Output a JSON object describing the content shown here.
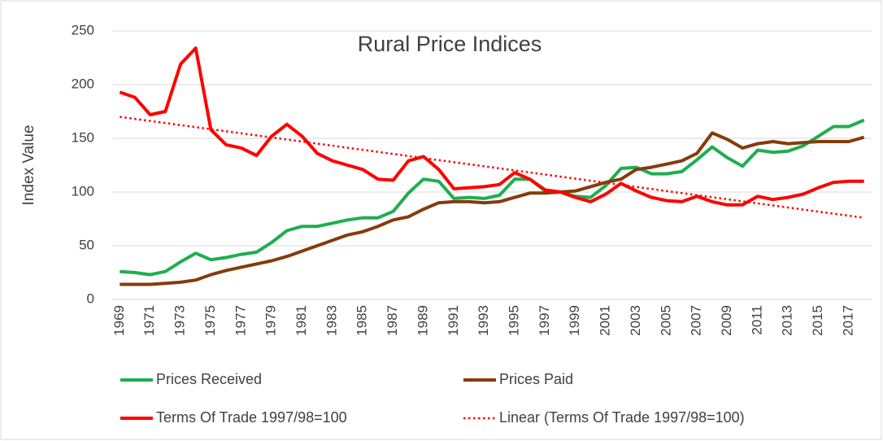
{
  "chart_data": {
    "type": "line",
    "title": "Rural Price Indices",
    "y_label": "Index Value",
    "x": [
      1969,
      1970,
      1971,
      1972,
      1973,
      1974,
      1975,
      1976,
      1977,
      1978,
      1979,
      1980,
      1981,
      1982,
      1983,
      1984,
      1985,
      1986,
      1987,
      1988,
      1989,
      1990,
      1991,
      1992,
      1993,
      1994,
      1995,
      1996,
      1997,
      1998,
      1999,
      2000,
      2001,
      2002,
      2003,
      2004,
      2005,
      2006,
      2007,
      2008,
      2009,
      2010,
      2011,
      2012,
      2013,
      2014,
      2015,
      2016,
      2017,
      2018
    ],
    "xlim": [
      1968.5,
      2018.5
    ],
    "xticks": [
      1969,
      1971,
      1973,
      1975,
      1977,
      1979,
      1981,
      1983,
      1985,
      1987,
      1989,
      1991,
      1993,
      1995,
      1997,
      1999,
      2001,
      2003,
      2005,
      2007,
      2009,
      2011,
      2013,
      2015,
      2017
    ],
    "ylim": [
      0,
      250
    ],
    "yticks": [
      0,
      50,
      100,
      150,
      200,
      250
    ],
    "grid": true,
    "series": [
      {
        "name": "Prices Received",
        "color": "#1fae4f",
        "values": [
          26,
          25,
          23,
          26,
          35,
          43,
          37,
          39,
          42,
          44,
          53,
          64,
          68,
          68,
          71,
          74,
          76,
          76,
          82,
          99,
          112,
          110,
          94,
          95,
          94,
          97,
          112,
          112,
          101,
          100,
          96,
          95,
          106,
          122,
          123,
          117,
          117,
          119,
          130,
          142,
          132,
          124,
          139,
          137,
          138,
          143,
          152,
          161,
          161,
          167
        ]
      },
      {
        "name": "Prices Paid",
        "color": "#843c0c",
        "values": [
          14,
          14,
          14,
          15,
          16,
          18,
          23,
          27,
          30,
          33,
          36,
          40,
          45,
          50,
          55,
          60,
          63,
          68,
          74,
          77,
          84,
          90,
          91,
          91,
          90,
          91,
          95,
          99,
          99,
          100,
          101,
          105,
          109,
          112,
          121,
          123,
          126,
          129,
          136,
          155,
          149,
          141,
          145,
          147,
          145,
          146,
          147,
          147,
          147,
          151
        ]
      },
      {
        "name": "Terms Of Trade 1997/98=100",
        "color": "#ff0000",
        "values": [
          193,
          188,
          172,
          175,
          219,
          234,
          158,
          144,
          141,
          134,
          152,
          163,
          152,
          136,
          129,
          125,
          121,
          112,
          111,
          129,
          133,
          121,
          103,
          104,
          105,
          107,
          118,
          112,
          102,
          100,
          95,
          91,
          98,
          108,
          101,
          95,
          92,
          91,
          96,
          91,
          88,
          88,
          96,
          93,
          95,
          98,
          104,
          109,
          110,
          110
        ]
      }
    ],
    "trendline": {
      "name": "Linear (Terms Of Trade 1997/98=100)",
      "color": "#ff0000",
      "style": "dotted",
      "x": [
        1969,
        2018
      ],
      "values": [
        170,
        76
      ]
    }
  }
}
